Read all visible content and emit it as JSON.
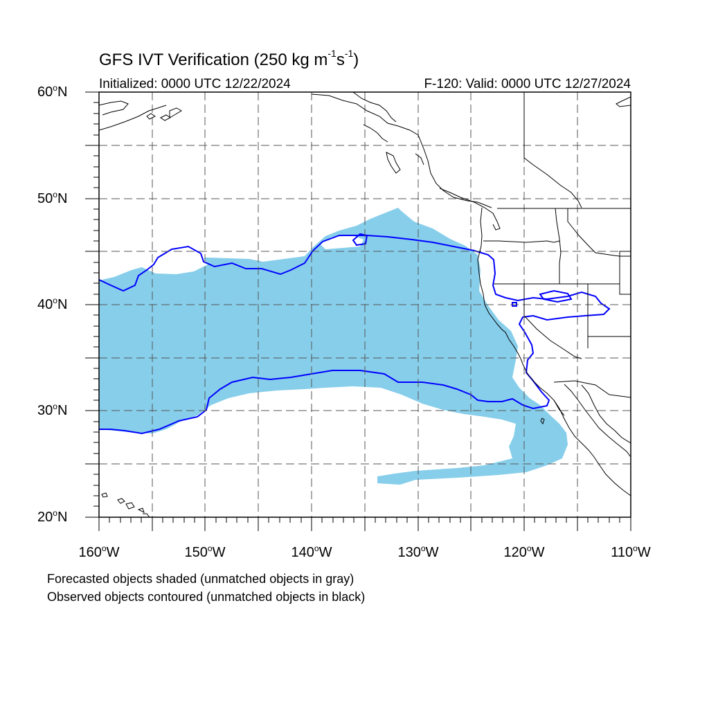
{
  "title": {
    "prefix": "GFS IVT Verification (250 kg m",
    "sup1": "-1",
    "mid": "s",
    "sup2": "-1",
    "suffix": ")"
  },
  "initialized": "Initialized: 0000 UTC 12/22/2024",
  "valid": "F-120: Valid: 0000 UTC 12/27/2024",
  "map": {
    "lon_range": [
      -160,
      -110
    ],
    "lat_range": [
      20,
      60
    ],
    "grid": "dashed",
    "forecast_fill_color": "#87ceeb",
    "observed_contour_color": "#0000ff",
    "coastline_color": "#000000",
    "lat_ticks": [
      {
        "value": "60",
        "hemi": "N"
      },
      {
        "value": "50",
        "hemi": "N"
      },
      {
        "value": "40",
        "hemi": "N"
      },
      {
        "value": "30",
        "hemi": "N"
      },
      {
        "value": "20",
        "hemi": "N"
      }
    ],
    "lon_ticks": [
      {
        "value": "160",
        "hemi": "W"
      },
      {
        "value": "150",
        "hemi": "W"
      },
      {
        "value": "140",
        "hemi": "W"
      },
      {
        "value": "130",
        "hemi": "W"
      },
      {
        "value": "120",
        "hemi": "W"
      },
      {
        "value": "110",
        "hemi": "W"
      }
    ]
  },
  "notes": {
    "forecast": "Forecasted objects shaded (unmatched objects in gray)",
    "observed": "Observed objects contoured (unmatched objects in black)"
  }
}
